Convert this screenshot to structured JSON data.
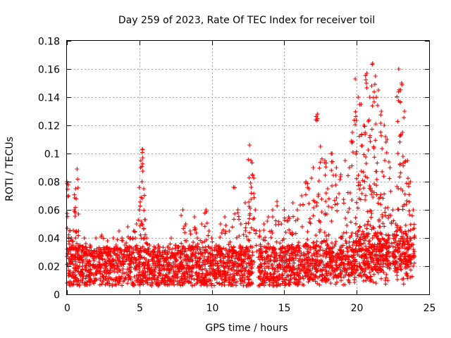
{
  "chart_data": {
    "type": "scatter",
    "title": "Day 259 of 2023, Rate Of TEC Index for receiver toil",
    "xlabel": "GPS time / hours",
    "ylabel": "ROTI / TECUs",
    "xlim": [
      0,
      25
    ],
    "ylim": [
      0,
      0.18
    ],
    "x_ticks": [
      0,
      5,
      10,
      15,
      20,
      25
    ],
    "y_ticks": [
      0,
      0.02,
      0.04,
      0.06,
      0.08,
      0.1,
      0.12,
      0.14,
      0.16,
      0.18
    ],
    "x_tick_labels": [
      "0",
      "5",
      "10",
      "15",
      "20",
      "25"
    ],
    "y_tick_labels": [
      "0",
      "0.02",
      "0.04",
      "0.06",
      "0.08",
      "0.1",
      "0.12",
      "0.14",
      "0.16",
      "0.18"
    ],
    "grid": true,
    "marker": "plus",
    "color": "#ff0000",
    "series": [
      {
        "values_description": "",
        "x": [
          0.0,
          0.1,
          0.2,
          0.3,
          0.4,
          0.5,
          0.6,
          0.7,
          0.8,
          0.9,
          1.0,
          1.2,
          1.4,
          1.6,
          1.8,
          2.0,
          2.2,
          2.4,
          2.6,
          2.8,
          3.0,
          3.2,
          3.4,
          3.6,
          3.8,
          4.0,
          4.2,
          4.4,
          4.6,
          4.8,
          5.0,
          5.1,
          5.2,
          5.3,
          5.4,
          5.5,
          5.7,
          6.0,
          6.3,
          6.6,
          6.9,
          7.2,
          7.5,
          7.8,
          8.0,
          8.2,
          8.5,
          8.8,
          9.0,
          9.3,
          9.6,
          9.8,
          10.0,
          10.3,
          10.6,
          10.9,
          11.2,
          11.5,
          11.8,
          12.0,
          12.3,
          12.6,
          12.7,
          12.8,
          13.0,
          13.3,
          13.6,
          13.9,
          14.2,
          14.5,
          14.8,
          15.0,
          15.3,
          15.6,
          15.9,
          16.2,
          16.5,
          16.7,
          17.0,
          17.3,
          17.5,
          17.8,
          18.0,
          18.3,
          18.6,
          18.9,
          19.2,
          19.5,
          19.7,
          19.9,
          20.1,
          20.3,
          20.5,
          20.7,
          20.9,
          21.1,
          21.3,
          21.5,
          21.7,
          21.9,
          22.1,
          22.3,
          22.5,
          22.7,
          22.9,
          23.1,
          23.3,
          23.5,
          23.7,
          23.9
        ],
        "y": [
          0.08,
          0.07,
          0.045,
          0.04,
          0.035,
          0.06,
          0.075,
          0.089,
          0.045,
          0.035,
          0.03,
          0.04,
          0.028,
          0.035,
          0.03,
          0.04,
          0.03,
          0.042,
          0.032,
          0.038,
          0.03,
          0.04,
          0.035,
          0.045,
          0.04,
          0.035,
          0.048,
          0.04,
          0.045,
          0.05,
          0.06,
          0.095,
          0.103,
          0.075,
          0.053,
          0.04,
          0.035,
          0.03,
          0.035,
          0.03,
          0.025,
          0.04,
          0.035,
          0.03,
          0.06,
          0.05,
          0.045,
          0.055,
          0.04,
          0.05,
          0.06,
          0.045,
          0.04,
          0.035,
          0.05,
          0.055,
          0.045,
          0.076,
          0.06,
          0.05,
          0.065,
          0.106,
          0.095,
          0.085,
          0.06,
          0.045,
          0.05,
          0.055,
          0.06,
          0.066,
          0.05,
          0.06,
          0.055,
          0.065,
          0.06,
          0.07,
          0.08,
          0.075,
          0.09,
          0.128,
          0.105,
          0.095,
          0.075,
          0.1,
          0.09,
          0.085,
          0.095,
          0.09,
          0.115,
          0.153,
          0.14,
          0.135,
          0.12,
          0.157,
          0.14,
          0.164,
          0.155,
          0.145,
          0.13,
          0.12,
          0.11,
          0.09,
          0.06,
          0.05,
          0.16,
          0.15,
          0.13,
          0.095,
          0.08,
          0.06
        ]
      }
    ]
  }
}
